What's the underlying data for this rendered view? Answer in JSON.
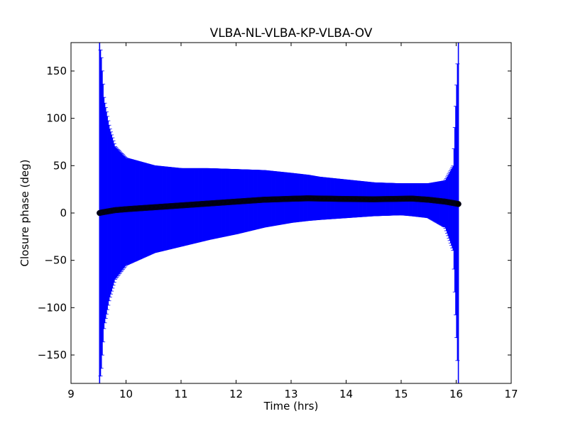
{
  "chart_data": {
    "type": "scatter",
    "title": "VLBA-NL-VLBA-KP-VLBA-OV",
    "xlabel": "Time (hrs)",
    "ylabel": "Closure phase (deg)",
    "xlim": [
      9,
      17
    ],
    "ylim": [
      -180,
      180
    ],
    "xticks": [
      9,
      10,
      11,
      12,
      13,
      14,
      15,
      16,
      17
    ],
    "xtick_labels": [
      "9",
      "10",
      "11",
      "12",
      "13",
      "14",
      "15",
      "16",
      "17"
    ],
    "yticks": [
      -150,
      -100,
      -50,
      0,
      50,
      100,
      150
    ],
    "ytick_labels": [
      "−150",
      "−100",
      "−50",
      "0",
      "50",
      "100",
      "150"
    ],
    "grid": false,
    "legend": "none",
    "series": [
      {
        "style": "points with error bars",
        "point_color": "#000000",
        "errorbar_color": "#0000ff",
        "x": [
          9.52,
          9.55,
          9.6,
          9.7,
          9.8,
          10.0,
          10.5,
          11.0,
          11.5,
          12.0,
          12.5,
          13.0,
          13.3,
          13.5,
          14.0,
          14.5,
          15.0,
          15.2,
          15.5,
          15.8,
          15.95,
          16.04
        ],
        "y": [
          0,
          0.5,
          1,
          2,
          3,
          4,
          6,
          8,
          10,
          12,
          14,
          15,
          15.5,
          15.3,
          14.8,
          14.5,
          15,
          15.2,
          14,
          12,
          10.5,
          9.5
        ],
        "upper": [
          180,
          165,
          120,
          90,
          70,
          58,
          50,
          47,
          47,
          46,
          45,
          42,
          40,
          38,
          35,
          32,
          31,
          31,
          31,
          34,
          50,
          180
        ],
        "lower": [
          -180,
          -165,
          -120,
          -90,
          -70,
          -55,
          -42,
          -35,
          -28,
          -22,
          -15,
          -10,
          -8,
          -7,
          -5,
          -3,
          -2,
          -3,
          -5,
          -15,
          -40,
          -180
        ]
      }
    ]
  }
}
